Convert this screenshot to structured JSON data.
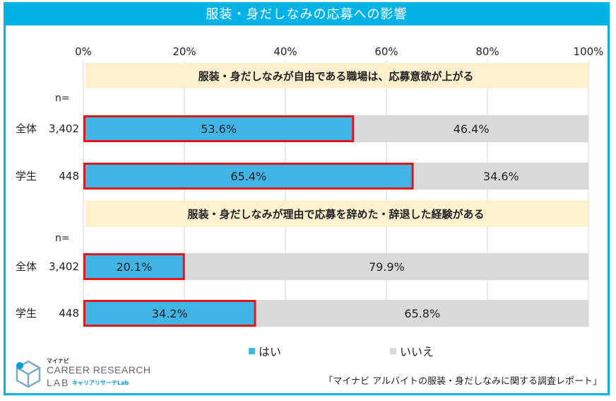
{
  "title": "服装・身だしなみの応募への影響",
  "chart_data": {
    "type": "bar",
    "orientation": "horizontal-stacked",
    "axis": {
      "ticks": [
        "0%",
        "20%",
        "40%",
        "60%",
        "80%",
        "100%"
      ],
      "xlim": [
        0,
        100
      ]
    },
    "n_label": "n=",
    "groups": [
      {
        "heading": "服装・身だしなみが自由である職場は、応募意欲が上がる",
        "rows": [
          {
            "label": "全体",
            "n": "3,402",
            "yes": 53.6,
            "no": 46.4,
            "yes_label": "53.6%",
            "no_label": "46.4%"
          },
          {
            "label": "学生",
            "n": "448",
            "yes": 65.4,
            "no": 34.6,
            "yes_label": "65.4%",
            "no_label": "34.6%"
          }
        ]
      },
      {
        "heading": "服装・身だしなみが理由で応募を辞めた・辞退した経験がある",
        "rows": [
          {
            "label": "全体",
            "n": "3,402",
            "yes": 20.1,
            "no": 79.9,
            "yes_label": "20.1%",
            "no_label": "79.9%"
          },
          {
            "label": "学生",
            "n": "448",
            "yes": 34.2,
            "no": 65.8,
            "yes_label": "34.2%",
            "no_label": "65.8%"
          }
        ]
      }
    ],
    "legend": [
      {
        "name": "はい",
        "color": "#41b6e6"
      },
      {
        "name": "いいえ",
        "color": "#d9d9d9"
      }
    ],
    "colors": {
      "yes": "#41b6e6",
      "no": "#d9d9d9",
      "highlight": "#e0181b",
      "heading_bg": "#fdf0cf",
      "grid": "#d0d0d0"
    }
  },
  "logo": {
    "small": "マイナビ",
    "main": "CAREER RESEARCH",
    "lab": "LAB",
    "lab_jp": "キャリアリサーチLab"
  },
  "source": "「マイナビ アルバイトの服装・身だしなみに関する調査レポート」"
}
